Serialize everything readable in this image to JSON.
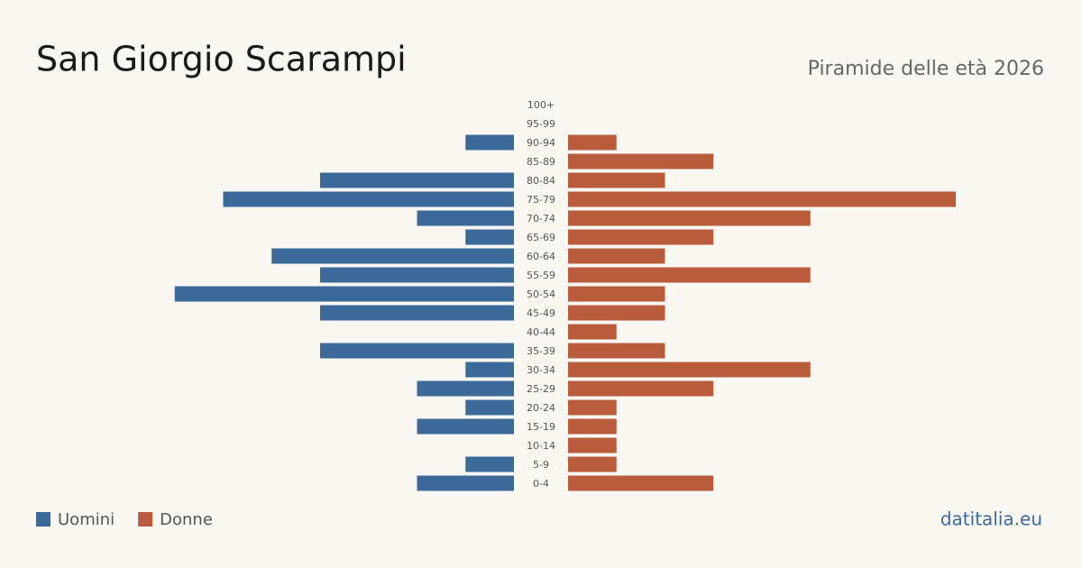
{
  "chart_data": {
    "type": "pyramid",
    "title": "San Giorgio Scarampi",
    "subtitle": "Piramide delle età 2026",
    "categories": [
      "100+",
      "95-99",
      "90-94",
      "85-89",
      "80-84",
      "75-79",
      "70-74",
      "65-69",
      "60-64",
      "55-59",
      "50-54",
      "45-49",
      "40-44",
      "35-39",
      "30-34",
      "25-29",
      "20-24",
      "15-19",
      "10-14",
      "5-9",
      "0-4"
    ],
    "series": [
      {
        "name": "Uomini",
        "color": "#3b6a9a",
        "values": [
          0,
          0,
          1,
          0,
          4,
          6,
          2,
          1,
          5,
          4,
          7,
          4,
          0,
          4,
          1,
          2,
          1,
          2,
          0,
          1,
          2
        ]
      },
      {
        "name": "Donne",
        "color": "#b85c3c",
        "values": [
          0,
          0,
          1,
          3,
          2,
          8,
          5,
          3,
          2,
          5,
          2,
          2,
          1,
          2,
          5,
          3,
          1,
          1,
          1,
          1,
          3
        ]
      }
    ],
    "source": "datitalia.eu"
  }
}
